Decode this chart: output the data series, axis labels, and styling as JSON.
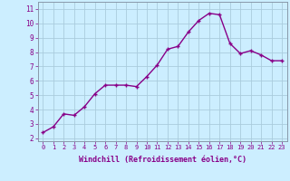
{
  "x": [
    0,
    1,
    2,
    3,
    4,
    5,
    6,
    7,
    8,
    9,
    10,
    11,
    12,
    13,
    14,
    15,
    16,
    17,
    18,
    19,
    20,
    21,
    22,
    23
  ],
  "y": [
    2.4,
    2.8,
    3.7,
    3.6,
    4.2,
    5.1,
    5.7,
    5.7,
    5.7,
    5.6,
    6.3,
    7.1,
    8.2,
    8.4,
    9.4,
    10.2,
    10.7,
    10.6,
    8.6,
    7.9,
    8.1,
    7.8,
    7.4,
    7.4
  ],
  "line_color": "#880088",
  "marker": "+",
  "marker_size": 3,
  "bg_color": "#cceeff",
  "grid_color": "#aaccdd",
  "xlabel": "Windchill (Refroidissement éolien,°C)",
  "xlabel_color": "#880088",
  "ylabel_ticks": [
    2,
    3,
    4,
    5,
    6,
    7,
    8,
    9,
    10,
    11
  ],
  "xtick_labels": [
    "0",
    "1",
    "2",
    "3",
    "4",
    "5",
    "6",
    "7",
    "8",
    "9",
    "10",
    "11",
    "12",
    "13",
    "14",
    "15",
    "16",
    "17",
    "18",
    "19",
    "20",
    "21",
    "22",
    "23"
  ],
  "ylim": [
    1.8,
    11.5
  ],
  "xlim": [
    -0.5,
    23.5
  ],
  "tick_color": "#880088",
  "tick_label_color": "#880088",
  "linewidth": 1.0,
  "spine_color": "#8899aa"
}
